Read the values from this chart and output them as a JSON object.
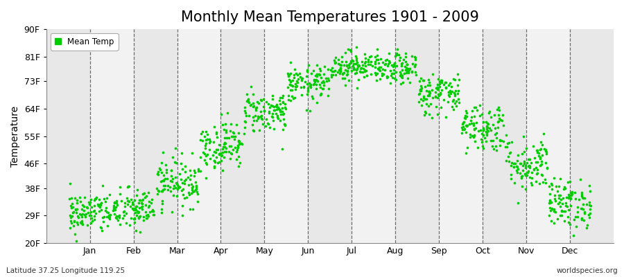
{
  "title": "Monthly Mean Temperatures 1901 - 2009",
  "ylabel": "Temperature",
  "xlabel_months": [
    "Jan",
    "Feb",
    "Mar",
    "Apr",
    "May",
    "Jun",
    "Jul",
    "Aug",
    "Sep",
    "Oct",
    "Nov",
    "Dec"
  ],
  "yticks": [
    20,
    29,
    38,
    46,
    55,
    64,
    73,
    81,
    90
  ],
  "ytick_labels": [
    "20F",
    "29F",
    "38F",
    "46F",
    "55F",
    "64F",
    "73F",
    "81F",
    "90F"
  ],
  "ylim": [
    20,
    90
  ],
  "dot_color": "#00CC00",
  "bg_color_light": "#F2F2F2",
  "bg_color_dark": "#E8E8E8",
  "legend_label": "Mean Temp",
  "bottom_left": "Latitude 37.25 Longitude 119.25",
  "bottom_right": "worldspecies.org",
  "title_fontsize": 15,
  "axis_label_fontsize": 10,
  "tick_fontsize": 9,
  "monthly_means": [
    30,
    31,
    40,
    52,
    63,
    72,
    78,
    77,
    69,
    58,
    46,
    33
  ],
  "monthly_std": [
    3.5,
    3.5,
    4.0,
    4.0,
    3.5,
    3.0,
    2.5,
    2.5,
    3.5,
    4.0,
    4.5,
    4.0
  ],
  "n_years": 109,
  "xlim": [
    0,
    13
  ]
}
